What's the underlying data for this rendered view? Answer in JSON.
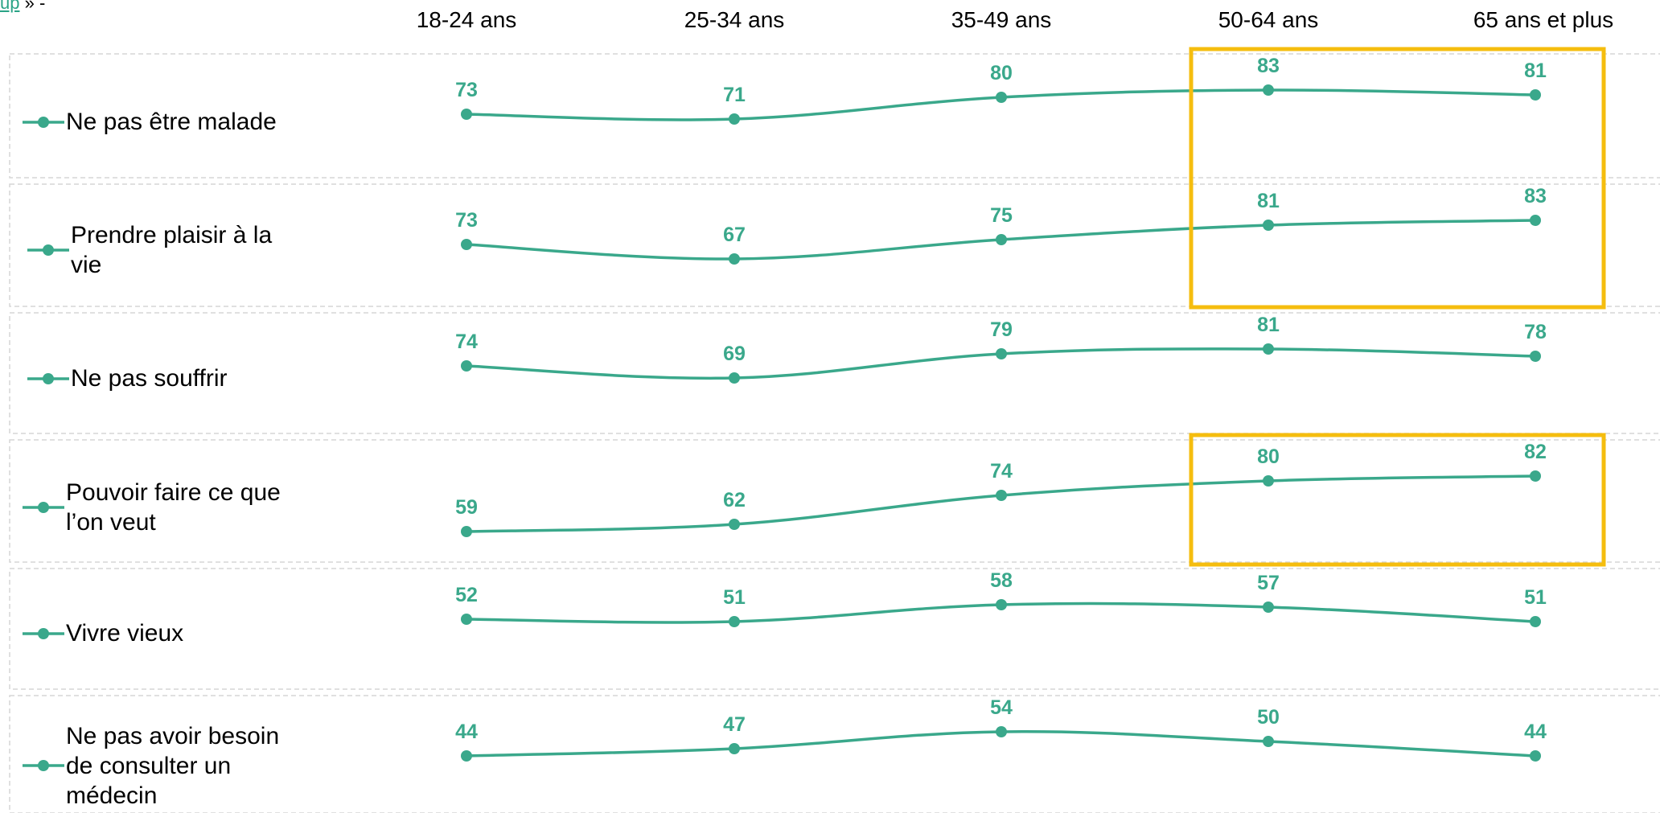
{
  "page": {
    "top_fragment_link": "up",
    "top_fragment_rest": " » -"
  },
  "colors": {
    "series": "#3aa88b",
    "highlight_box": "#f5bd0e",
    "panel_border": "#d6d6d6"
  },
  "icons": {
    "row_marker": "line-dot-icon"
  },
  "chart_data": {
    "type": "line",
    "categories": [
      "18-24 ans",
      "25-34 ans",
      "35-49 ans",
      "50-64 ans",
      "65 ans et plus"
    ],
    "series": [
      {
        "name": "Ne pas être malade",
        "values": [
          73,
          71,
          80,
          83,
          81
        ]
      },
      {
        "name": "Prendre plaisir à la vie",
        "values": [
          73,
          67,
          75,
          81,
          83
        ]
      },
      {
        "name": "Ne pas souffrir",
        "values": [
          74,
          69,
          79,
          81,
          78
        ]
      },
      {
        "name": "Pouvoir faire ce que l’on veut",
        "values": [
          59,
          62,
          74,
          80,
          82
        ]
      },
      {
        "name": "Vivre vieux",
        "values": [
          52,
          51,
          58,
          57,
          51
        ]
      },
      {
        "name": "Ne pas avoir besoin de consulter un médecin",
        "values": [
          44,
          47,
          54,
          50,
          44
        ]
      }
    ],
    "highlights": [
      {
        "categories": [
          "50-64 ans",
          "65 ans et plus"
        ],
        "series": [
          "Ne pas être malade",
          "Prendre plaisir à la vie"
        ]
      },
      {
        "categories": [
          "50-64 ans",
          "65 ans et plus"
        ],
        "series": [
          "Pouvoir faire ce que l’on veut"
        ]
      }
    ],
    "data_labels": true,
    "grid": false,
    "legend": "left of each row"
  }
}
